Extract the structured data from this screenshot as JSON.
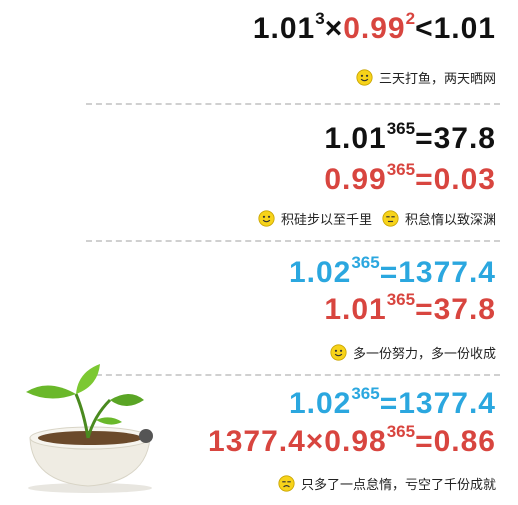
{
  "colors": {
    "black": "#111111",
    "red": "#d8453f",
    "blue": "#2ba7df",
    "smiley": "#f7d31a"
  },
  "icons": {
    "emoticon": "smiley-icon",
    "illustration": "plant-pot-icon"
  },
  "sections": [
    {
      "lines": [
        {
          "parts": [
            {
              "text": "1.01",
              "color": "black"
            },
            {
              "text": "3",
              "color": "black",
              "sup": true
            },
            {
              "text": "×",
              "color": "black"
            },
            {
              "text": "0.99",
              "color": "red"
            },
            {
              "text": "2",
              "color": "red",
              "sup": true
            },
            {
              "text": "<1.01",
              "color": "black"
            }
          ]
        }
      ],
      "captions": [
        "三天打鱼，两天晒网"
      ]
    },
    {
      "lines": [
        {
          "parts": [
            {
              "text": "1.01",
              "color": "black"
            },
            {
              "text": "365",
              "color": "black",
              "sup": true
            },
            {
              "text": "=37.8",
              "color": "black"
            }
          ]
        },
        {
          "parts": [
            {
              "text": "0.99",
              "color": "red"
            },
            {
              "text": "365",
              "color": "red",
              "sup": true
            },
            {
              "text": "=0.03",
              "color": "red"
            }
          ]
        }
      ],
      "captions": [
        "积硅步以至千里",
        "积怠惰以致深渊"
      ]
    },
    {
      "lines": [
        {
          "parts": [
            {
              "text": "1.02",
              "color": "blue"
            },
            {
              "text": "365",
              "color": "blue",
              "sup": true
            },
            {
              "text": "=1377.4",
              "color": "blue"
            }
          ]
        },
        {
          "parts": [
            {
              "text": "1.01",
              "color": "red"
            },
            {
              "text": "365",
              "color": "red",
              "sup": true
            },
            {
              "text": "=37.8",
              "color": "red"
            }
          ]
        }
      ],
      "captions": [
        "多一份努力，多一份收成"
      ]
    },
    {
      "lines": [
        {
          "parts": [
            {
              "text": "1.02",
              "color": "blue"
            },
            {
              "text": "365",
              "color": "blue",
              "sup": true
            },
            {
              "text": "=1377.4",
              "color": "blue"
            }
          ]
        },
        {
          "parts": [
            {
              "text": "1377.4×0.98",
              "color": "red"
            },
            {
              "text": "365",
              "color": "red",
              "sup": true
            },
            {
              "text": "=0.86",
              "color": "red"
            }
          ]
        }
      ],
      "captions": [
        "只多了一点怠惰，亏空了千份成就"
      ]
    }
  ]
}
